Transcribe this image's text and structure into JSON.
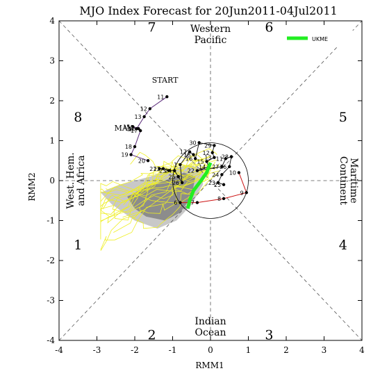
{
  "chart_data": {
    "type": "line",
    "title": "MJO Index Forecast for 20Jun2011-04Jul2011",
    "xlabel": "RMM1",
    "ylabel": "RMM2",
    "xlim": [
      -4,
      4
    ],
    "ylim": [
      -4,
      4
    ],
    "xticks": [
      "-4",
      "-3",
      "-2",
      "-1",
      "0",
      "1",
      "2",
      "3",
      "4"
    ],
    "yticks": [
      "-4",
      "-3",
      "-2",
      "-1",
      "0",
      "1",
      "2",
      "3",
      "4"
    ],
    "phase_numbers": [
      {
        "label": "1",
        "x": -3.5,
        "y": -1.6
      },
      {
        "label": "2",
        "x": -1.55,
        "y": -3.85
      },
      {
        "label": "3",
        "x": 1.55,
        "y": -3.85
      },
      {
        "label": "4",
        "x": 3.5,
        "y": -1.6
      },
      {
        "label": "5",
        "x": 3.5,
        "y": 1.6
      },
      {
        "label": "6",
        "x": 1.55,
        "y": 3.85
      },
      {
        "label": "7",
        "x": -1.55,
        "y": 3.85
      },
      {
        "label": "8",
        "x": -3.5,
        "y": 1.6
      }
    ],
    "region_labels": {
      "top": [
        "Western",
        "Pacific"
      ],
      "bottom": [
        "Indian",
        "Ocean"
      ],
      "left": [
        "West. Hem.",
        "and Africa"
      ],
      "right": [
        "Maritime",
        "Continent"
      ]
    },
    "annotations": [
      {
        "text": "START",
        "x": -1.2,
        "y": 2.45,
        "color": "#6a2a8a"
      },
      {
        "text": "MAY",
        "x": -2.3,
        "y": 1.25,
        "color": "#6a2a8a"
      }
    ],
    "legend": {
      "entries": [
        {
          "name": "UKME",
          "color": "#22ee22"
        }
      ],
      "placement": "top-right"
    },
    "series": [
      {
        "name": "observed-may",
        "color": "#5a2a7a",
        "points": [
          {
            "label": "11",
            "x": -1.15,
            "y": 2.1
          },
          {
            "label": "12",
            "x": -1.6,
            "y": 1.8
          },
          {
            "label": "13",
            "x": -1.75,
            "y": 1.6
          },
          {
            "label": "14",
            "x": -1.95,
            "y": 1.3
          },
          {
            "label": "15",
            "x": -2.05,
            "y": 1.35
          },
          {
            "label": "16",
            "x": -1.9,
            "y": 1.3
          },
          {
            "label": "17",
            "x": -1.85,
            "y": 1.25
          },
          {
            "label": "18",
            "x": -2.0,
            "y": 0.85
          },
          {
            "label": "19",
            "x": -2.1,
            "y": 0.65
          },
          {
            "label": "20",
            "x": -1.65,
            "y": 0.5
          }
        ]
      },
      {
        "name": "observed-june",
        "color": "#1a1a1a",
        "points": [
          {
            "label": "21",
            "x": -1.35,
            "y": 0.3
          },
          {
            "label": "22",
            "x": -1.25,
            "y": 0.3
          },
          {
            "label": "23",
            "x": -1.1,
            "y": 0.25
          },
          {
            "label": "24",
            "x": -0.95,
            "y": 0.25
          },
          {
            "label": "25",
            "x": -0.85,
            "y": 0.1
          },
          {
            "label": "26",
            "x": -0.75,
            "y": -0.05
          },
          {
            "label": "1",
            "x": -0.8,
            "y": 0.4
          },
          {
            "label": "17",
            "x": -0.55,
            "y": 0.72
          },
          {
            "label": "18",
            "x": -0.45,
            "y": 0.65
          },
          {
            "label": "16",
            "x": -0.4,
            "y": 0.55
          },
          {
            "label": "30",
            "x": -0.3,
            "y": 0.95
          },
          {
            "label": "29",
            "x": 0.1,
            "y": 0.88
          },
          {
            "label": "12",
            "x": 0.05,
            "y": 0.7
          },
          {
            "label": "13",
            "x": 0.1,
            "y": 0.58
          },
          {
            "label": "15",
            "x": -0.1,
            "y": 0.48
          },
          {
            "label": "14",
            "x": -0.05,
            "y": 0.35
          },
          {
            "label": "22",
            "x": -0.35,
            "y": 0.25
          },
          {
            "label": "27",
            "x": 0.3,
            "y": 0.35
          },
          {
            "label": "11",
            "x": 0.4,
            "y": 0.55
          },
          {
            "label": "28",
            "x": 0.55,
            "y": 0.6
          },
          {
            "label": "26",
            "x": 0.5,
            "y": 0.35
          },
          {
            "label": "24",
            "x": 0.3,
            "y": 0.15
          },
          {
            "label": "23",
            "x": 0.2,
            "y": -0.05
          },
          {
            "label": "25",
            "x": 0.35,
            "y": -0.1
          }
        ]
      },
      {
        "name": "observed-recent",
        "color": "#cc1111",
        "points": [
          {
            "label": "10",
            "x": 0.75,
            "y": 0.2
          },
          {
            "label": "9",
            "x": 0.95,
            "y": -0.3
          },
          {
            "label": "8",
            "x": 0.35,
            "y": -0.45
          },
          {
            "label": "7",
            "x": -0.35,
            "y": -0.55
          },
          {
            "label": "6",
            "x": -0.8,
            "y": -0.55
          }
        ]
      },
      {
        "name": "UKME",
        "color": "#22ee22",
        "points": [
          {
            "x": 0.0,
            "y": 0.45
          },
          {
            "x": -0.1,
            "y": 0.2
          },
          {
            "x": -0.25,
            "y": 0.0
          },
          {
            "x": -0.45,
            "y": -0.25
          },
          {
            "x": -0.55,
            "y": -0.5
          },
          {
            "x": -0.6,
            "y": -0.7
          }
        ]
      }
    ]
  }
}
